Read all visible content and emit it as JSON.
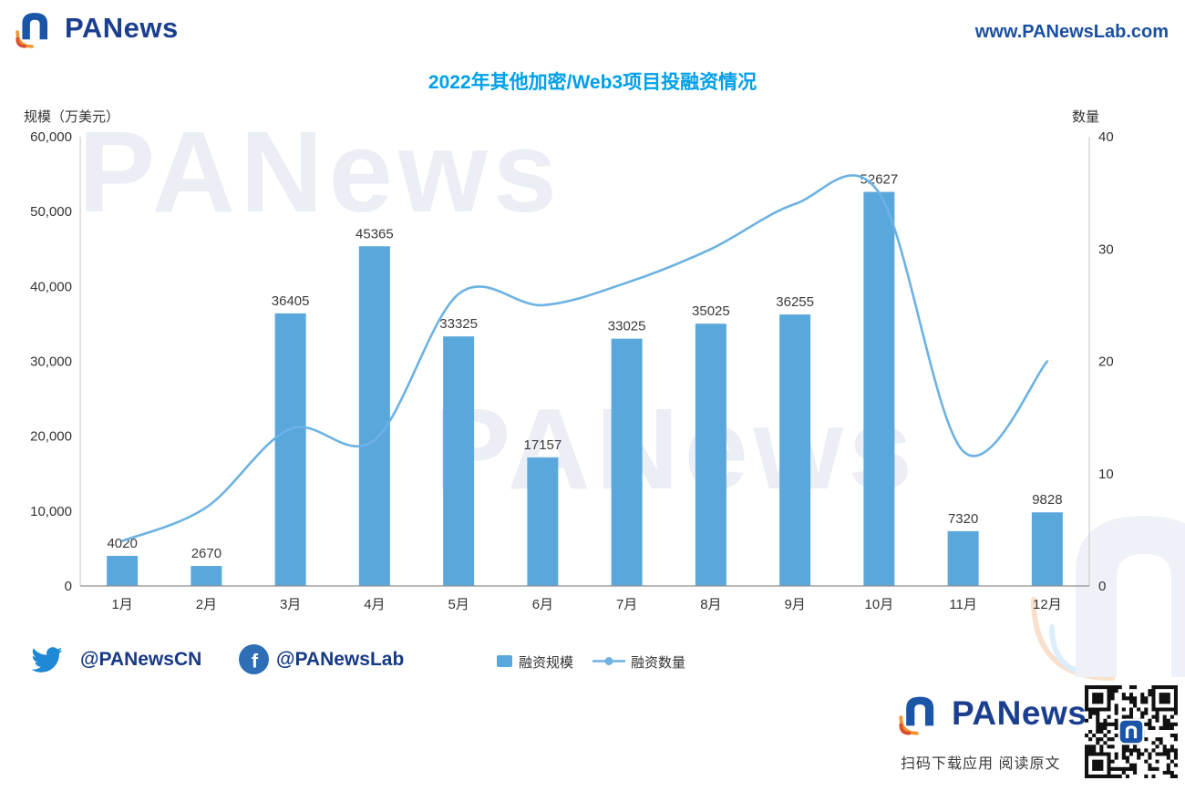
{
  "header": {
    "logo_text": "PANews",
    "url": "www.PANewsLab.com"
  },
  "watermark": {
    "text": "PANews"
  },
  "icons": {
    "logo": "panews-n-logo",
    "twitter": "twitter-bird",
    "facebook": "facebook-f",
    "qr": "qr-code"
  },
  "chart_data": {
    "type": "bar+line",
    "title": "2022年其他加密/Web3项目投融资情况",
    "categories": [
      "1月",
      "2月",
      "3月",
      "4月",
      "5月",
      "6月",
      "7月",
      "8月",
      "9月",
      "10月",
      "11月",
      "12月"
    ],
    "left_axis": {
      "label": "规模（万美元）",
      "min": 0,
      "max": 60000,
      "tick_values": [
        0,
        10000,
        20000,
        30000,
        40000,
        50000,
        60000
      ],
      "tick_labels": [
        "0",
        "10,000",
        "20,000",
        "30,000",
        "40,000",
        "50,000",
        "60,000"
      ]
    },
    "right_axis": {
      "label": "数量",
      "min": 0,
      "max": 40,
      "tick_values": [
        0,
        10,
        20,
        30,
        40
      ],
      "tick_labels": [
        "0",
        "10",
        "20",
        "30",
        "40"
      ]
    },
    "series": [
      {
        "name": "融资规模",
        "type": "bar",
        "color": "#5aa7db",
        "values": [
          4020,
          2670,
          36405,
          45365,
          33325,
          17157,
          33025,
          35025,
          36255,
          52627,
          7320,
          9828
        ]
      },
      {
        "name": "融资数量",
        "type": "line",
        "color": "#6cb2e2",
        "values": [
          4,
          7,
          14,
          13,
          26,
          25,
          27,
          30,
          34,
          35,
          12,
          20
        ]
      }
    ],
    "grid": false,
    "legend_position": "bottom"
  },
  "footer": {
    "twitter_handle": "@PANewsCN",
    "facebook_handle": "@PANewsLab"
  },
  "bottom": {
    "logo_text": "PANews",
    "caption": "扫码下载应用 阅读原文"
  }
}
